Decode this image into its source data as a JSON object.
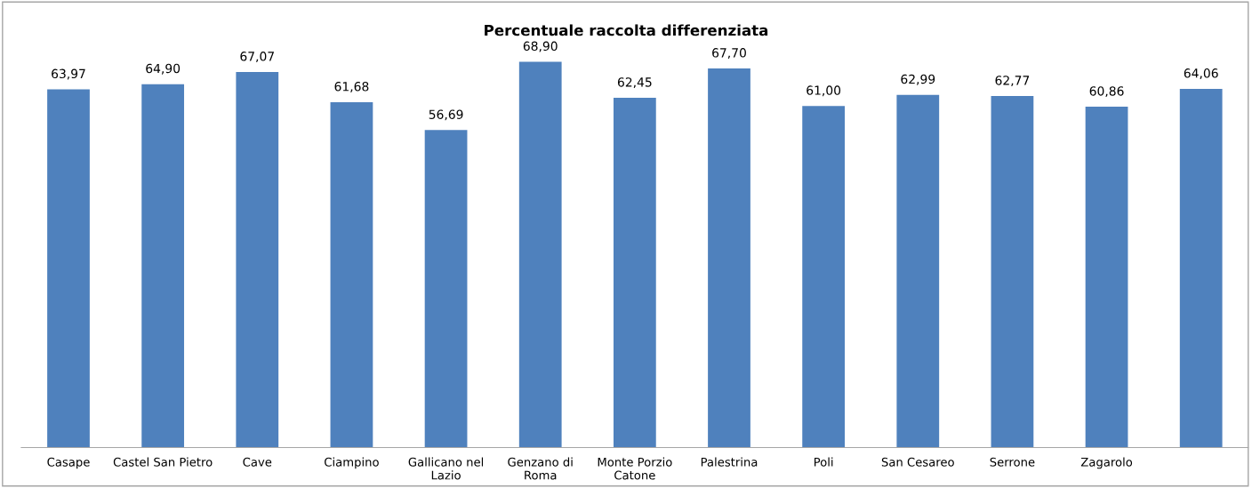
{
  "chart_data": {
    "type": "bar",
    "title": "Percentuale raccolta differenziata",
    "categories": [
      "Casape",
      "Castel San Pietro",
      "Cave",
      "Ciampino",
      "Gallicano nel\nLazio",
      "Genzano di\nRoma",
      "Monte Porzio\nCatone",
      "Palestrina",
      "Poli",
      "San Cesareo",
      "Serrone",
      "Zagarolo",
      null
    ],
    "values": [
      63.97,
      64.9,
      67.07,
      61.68,
      56.69,
      68.9,
      62.45,
      67.7,
      61.0,
      62.99,
      62.77,
      60.86,
      64.06
    ],
    "value_labels": [
      "63,97",
      "64,90",
      "67,07",
      "61,68",
      "56,69",
      "68,90",
      "62,45",
      "67,70",
      "61,00",
      "62,99",
      "62,77",
      "60,86",
      "64,06"
    ],
    "color": "#4f81bd",
    "tick_labels": "x",
    "grid": false,
    "legend": false
  }
}
